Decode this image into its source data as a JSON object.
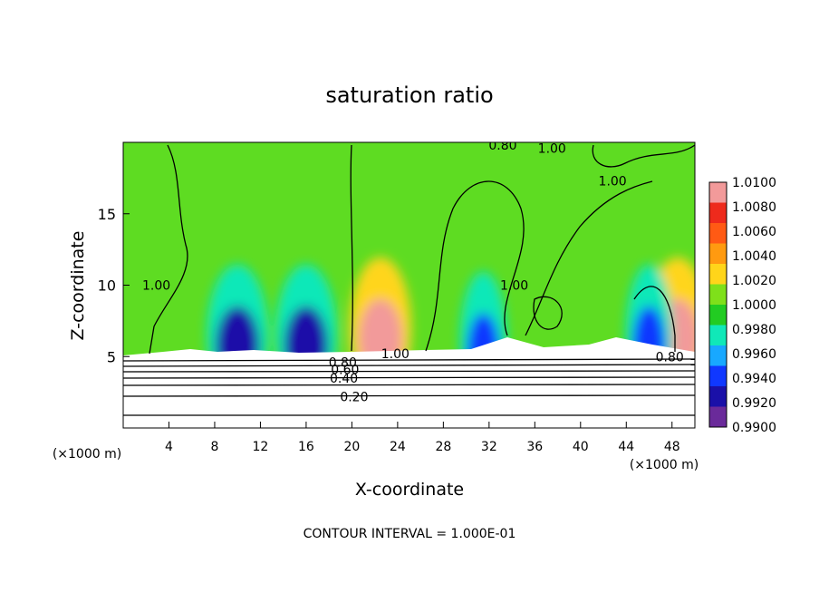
{
  "chart_data": {
    "type": "heatmap",
    "title": "saturation ratio",
    "xlabel": "X-coordinate",
    "ylabel": "Z-coordinate",
    "x_unit": "(×1000 m)",
    "y_unit": "(×1000 m)",
    "footer": "CONTOUR INTERVAL = 1.000E-01",
    "xlim": [
      0,
      50
    ],
    "ylim": [
      0,
      20
    ],
    "x_ticks": [
      4,
      8,
      12,
      16,
      20,
      24,
      28,
      32,
      36,
      40,
      44,
      48
    ],
    "y_ticks": [
      5,
      10,
      15
    ],
    "colorbar": {
      "levels": [
        "1.0100",
        "1.0080",
        "1.0060",
        "1.0040",
        "1.0020",
        "1.0000",
        "0.9980",
        "0.9960",
        "0.9940",
        "0.9920",
        "0.9900"
      ],
      "colors": [
        "#f29a9a",
        "#ee2a1c",
        "#ff5a14",
        "#ff9a10",
        "#ffd51a",
        "#7fe01a",
        "#22cc22",
        "#10e8b8",
        "#18a8ff",
        "#1038ff",
        "#1a10a8",
        "#6a2a9a"
      ]
    },
    "contour_labels": [
      {
        "text": "0.80",
        "x": 33.2,
        "y": 19.8
      },
      {
        "text": "1.00",
        "x": 37.5,
        "y": 19.6
      },
      {
        "text": "1.00",
        "x": 42.8,
        "y": 17.3
      },
      {
        "text": "1.00",
        "x": 2.9,
        "y": 10.0
      },
      {
        "text": "1.00",
        "x": 34.2,
        "y": 10.0
      },
      {
        "text": "1.00",
        "x": 23.8,
        "y": 5.2
      },
      {
        "text": "0.80",
        "x": 19.2,
        "y": 4.6
      },
      {
        "text": "0.60",
        "x": 19.4,
        "y": 4.1
      },
      {
        "text": "0.40",
        "x": 19.3,
        "y": 3.5
      },
      {
        "text": "0.20",
        "x": 20.2,
        "y": 2.2
      },
      {
        "text": "0.80",
        "x": 47.8,
        "y": 5.0
      }
    ],
    "anomaly_cells": [
      {
        "x": 10,
        "y": 6.5,
        "value": 0.9925
      },
      {
        "x": 16,
        "y": 6.5,
        "value": 0.9925
      },
      {
        "x": 22.5,
        "y": 7.0,
        "value": 1.01
      },
      {
        "x": 48.5,
        "y": 7.0,
        "value": 1.01
      },
      {
        "x": 46,
        "y": 6.5,
        "value": 0.9935
      },
      {
        "x": 31.5,
        "y": 6.0,
        "value": 0.9945
      }
    ]
  }
}
